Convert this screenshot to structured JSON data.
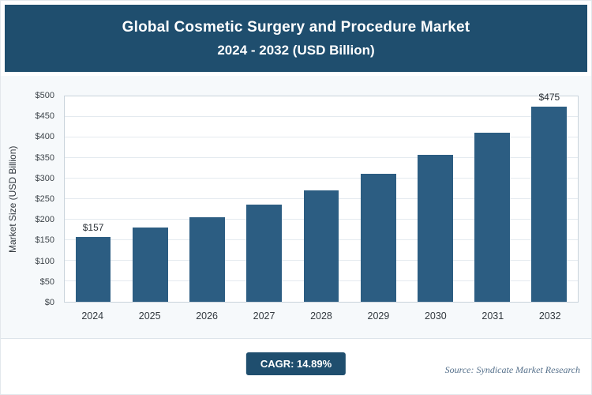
{
  "header": {
    "title_line1": "Global Cosmetic Surgery and Procedure Market",
    "title_line2": "2024 - 2032 (USD Billion)"
  },
  "chart_data": {
    "type": "bar",
    "title": "Global Cosmetic Surgery and Procedure Market 2024 - 2032 (USD Billion)",
    "categories": [
      "2024",
      "2025",
      "2026",
      "2027",
      "2028",
      "2029",
      "2030",
      "2031",
      "2032"
    ],
    "values": [
      157,
      180,
      206,
      237,
      272,
      312,
      358,
      412,
      475
    ],
    "value_labels": {
      "0": "$157",
      "8": "$475"
    },
    "xlabel": "",
    "ylabel": "Market Size (USD Billion)",
    "ylim": [
      0,
      500
    ],
    "ytick_step": 50,
    "yticks": [
      "$0",
      "$50",
      "$100",
      "$150",
      "$200",
      "$250",
      "$300",
      "$350",
      "$400",
      "$450",
      "$500"
    ],
    "grid": true,
    "legend": "none",
    "bar_color": "#2c5d82"
  },
  "footer": {
    "cagr_label": "CAGR: 14.89%",
    "source": "Source: Syndicate Market Research"
  },
  "colors": {
    "header_bg": "#1f4e6e",
    "bar": "#2c5d82",
    "section_bg": "#f6f9fb",
    "grid": "#e4eaef"
  }
}
